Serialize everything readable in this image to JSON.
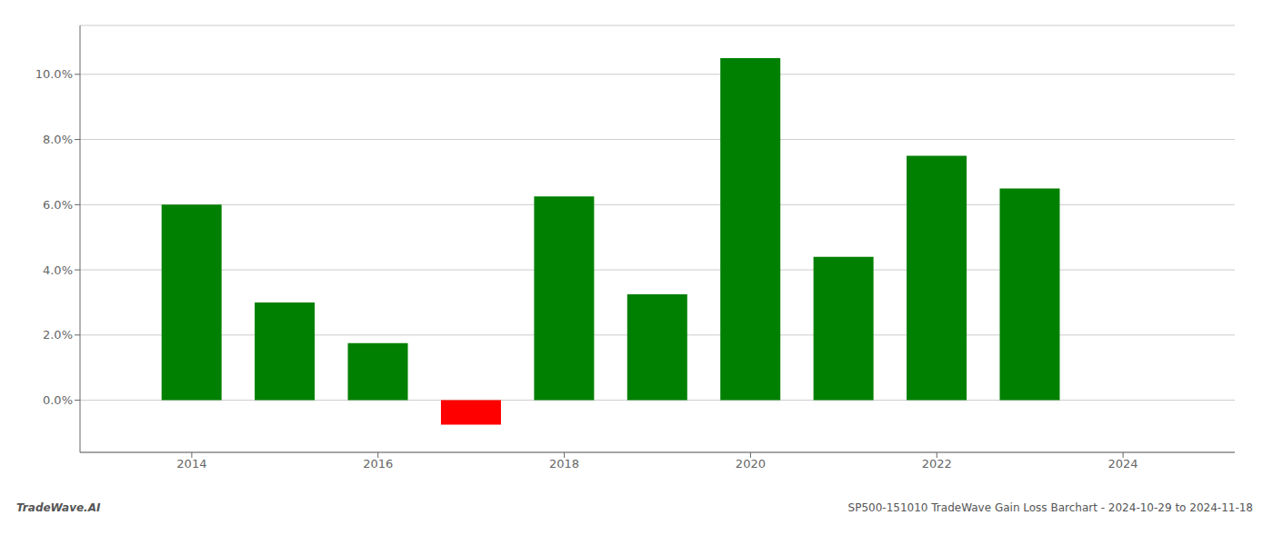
{
  "chart_data": {
    "type": "bar",
    "x": [
      2014,
      2015,
      2016,
      2017,
      2018,
      2019,
      2020,
      2021,
      2022,
      2023
    ],
    "values": [
      0.06,
      0.03,
      0.0175,
      -0.0075,
      0.0625,
      0.0325,
      0.105,
      0.044,
      0.075,
      0.065
    ],
    "colors": [
      "#008000",
      "#008000",
      "#008000",
      "#ff0000",
      "#008000",
      "#008000",
      "#008000",
      "#008000",
      "#008000",
      "#008000"
    ],
    "xlim": [
      2012.8,
      2025.2
    ],
    "xticks": [
      2014,
      2016,
      2018,
      2020,
      2022,
      2024
    ],
    "ylim": [
      -0.016,
      0.115
    ],
    "yticks": [
      {
        "value": 0.0,
        "label": "0.0%"
      },
      {
        "value": 0.02,
        "label": "2.0%"
      },
      {
        "value": 0.04,
        "label": "4.0%"
      },
      {
        "value": 0.06,
        "label": "6.0%"
      },
      {
        "value": 0.08,
        "label": "8.0%"
      },
      {
        "value": 0.1,
        "label": "10.0%"
      }
    ],
    "grid": true,
    "annotations": [
      "TradeWave.AI",
      "SP500-151010 TradeWave Gain Loss Barchart - 2024-10-29 to 2024-11-18"
    ]
  }
}
